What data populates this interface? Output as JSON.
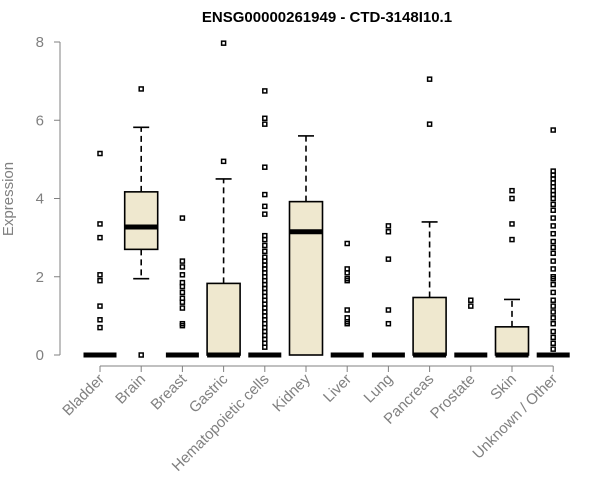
{
  "chart_data": {
    "type": "boxplot",
    "title": "ENSG00000261949 - CTD-3148I10.1",
    "ylabel": "Expression",
    "ylim": [
      0,
      8
    ],
    "yticks": [
      0,
      2,
      4,
      6,
      8
    ],
    "grid": false,
    "categories": [
      "Bladder",
      "Brain",
      "Breast",
      "Gastric",
      "Hematopoietic cells",
      "Kidney",
      "Liver",
      "Lung",
      "Pancreas",
      "Prostate",
      "Skin",
      "Unknown / Other"
    ],
    "boxes": [
      {
        "q1": 0,
        "median": 0,
        "q3": 0,
        "lower": 0,
        "upper": 0,
        "outliers": [
          5.15,
          3.35,
          3.0,
          2.05,
          1.9,
          1.25,
          0.9,
          0.7
        ]
      },
      {
        "q1": 2.7,
        "median": 3.27,
        "q3": 4.17,
        "lower": 1.95,
        "upper": 5.82,
        "outliers": [
          6.8,
          0.0
        ]
      },
      {
        "q1": 0,
        "median": 0,
        "q3": 0,
        "lower": 0,
        "upper": 0,
        "outliers": [
          3.5,
          2.4,
          2.25,
          2.05,
          1.85,
          1.75,
          1.6,
          1.45,
          1.35,
          1.2,
          0.8,
          0.75
        ]
      },
      {
        "q1": 0,
        "median": 0,
        "q3": 1.83,
        "lower": 0,
        "upper": 4.5,
        "outliers": [
          7.97,
          4.95
        ]
      },
      {
        "q1": 0,
        "median": 0,
        "q3": 0,
        "lower": 0,
        "upper": 0,
        "outliers": [
          6.75,
          6.05,
          5.9,
          4.8,
          4.1,
          3.8,
          3.6,
          3.05,
          2.95,
          2.8,
          2.65,
          2.5,
          2.4,
          2.3,
          2.2,
          2.1,
          2.0,
          1.9,
          1.8,
          1.7,
          1.6,
          1.5,
          1.4,
          1.3,
          1.2,
          1.1,
          1.0,
          0.9,
          0.8,
          0.7,
          0.6,
          0.5,
          0.4,
          0.3,
          0.2
        ]
      },
      {
        "q1": 0,
        "median": 3.15,
        "q3": 3.92,
        "lower": 0,
        "upper": 5.6,
        "outliers": []
      },
      {
        "q1": 0,
        "median": 0,
        "q3": 0,
        "lower": 0,
        "upper": 0,
        "outliers": [
          2.85,
          2.2,
          2.1,
          1.95,
          1.9,
          1.15,
          0.95,
          0.85,
          0.8
        ]
      },
      {
        "q1": 0,
        "median": 0,
        "q3": 0,
        "lower": 0,
        "upper": 0,
        "outliers": [
          3.3,
          3.15,
          2.45,
          1.15,
          0.8
        ]
      },
      {
        "q1": 0,
        "median": 0,
        "q3": 1.47,
        "lower": 0,
        "upper": 3.4,
        "outliers": [
          7.05,
          5.9
        ]
      },
      {
        "q1": 0,
        "median": 0,
        "q3": 0,
        "lower": 0,
        "upper": 0,
        "outliers": [
          1.4,
          1.25
        ]
      },
      {
        "q1": 0,
        "median": 0,
        "q3": 0.72,
        "lower": 0,
        "upper": 1.42,
        "outliers": [
          4.2,
          4.0,
          3.35,
          2.95
        ]
      },
      {
        "q1": 0,
        "median": 0,
        "q3": 0,
        "lower": 0,
        "upper": 0,
        "outliers": [
          5.75,
          4.7,
          4.6,
          4.5,
          4.4,
          4.3,
          4.2,
          4.1,
          4.0,
          3.85,
          3.7,
          3.5,
          3.3,
          3.1,
          2.9,
          2.75,
          2.6,
          2.4,
          2.2,
          2.0,
          1.95,
          1.8,
          1.6,
          1.4,
          1.25,
          1.1,
          0.95,
          0.8,
          0.6,
          0.45,
          0.3,
          0.15
        ]
      }
    ]
  }
}
